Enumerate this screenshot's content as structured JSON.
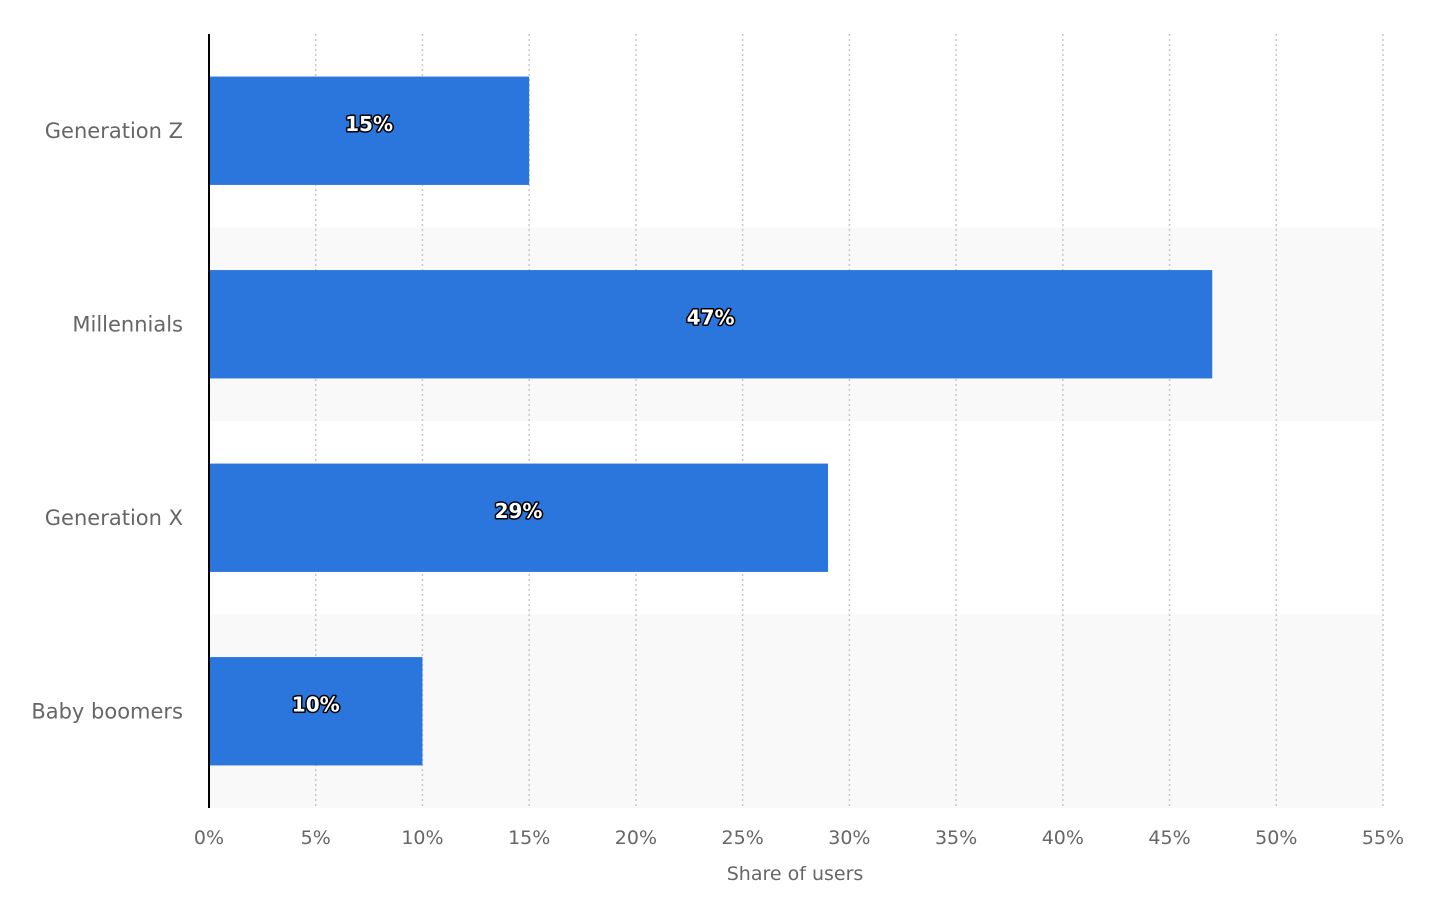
{
  "chart_data": {
    "type": "bar",
    "orientation": "horizontal",
    "categories": [
      "Generation Z",
      "Millennials",
      "Generation X",
      "Baby boomers"
    ],
    "values": [
      15,
      47,
      29,
      10
    ],
    "data_labels": [
      "15%",
      "47%",
      "29%",
      "10%"
    ],
    "xlabel": "Share of users",
    "ylabel": "",
    "xlim": [
      0,
      55
    ],
    "xticks": [
      "0%",
      "5%",
      "10%",
      "15%",
      "20%",
      "25%",
      "30%",
      "35%",
      "40%",
      "45%",
      "50%",
      "55%"
    ],
    "grid": true,
    "bar_color": "#2a76dc",
    "band_color": "#f9f9f9"
  }
}
